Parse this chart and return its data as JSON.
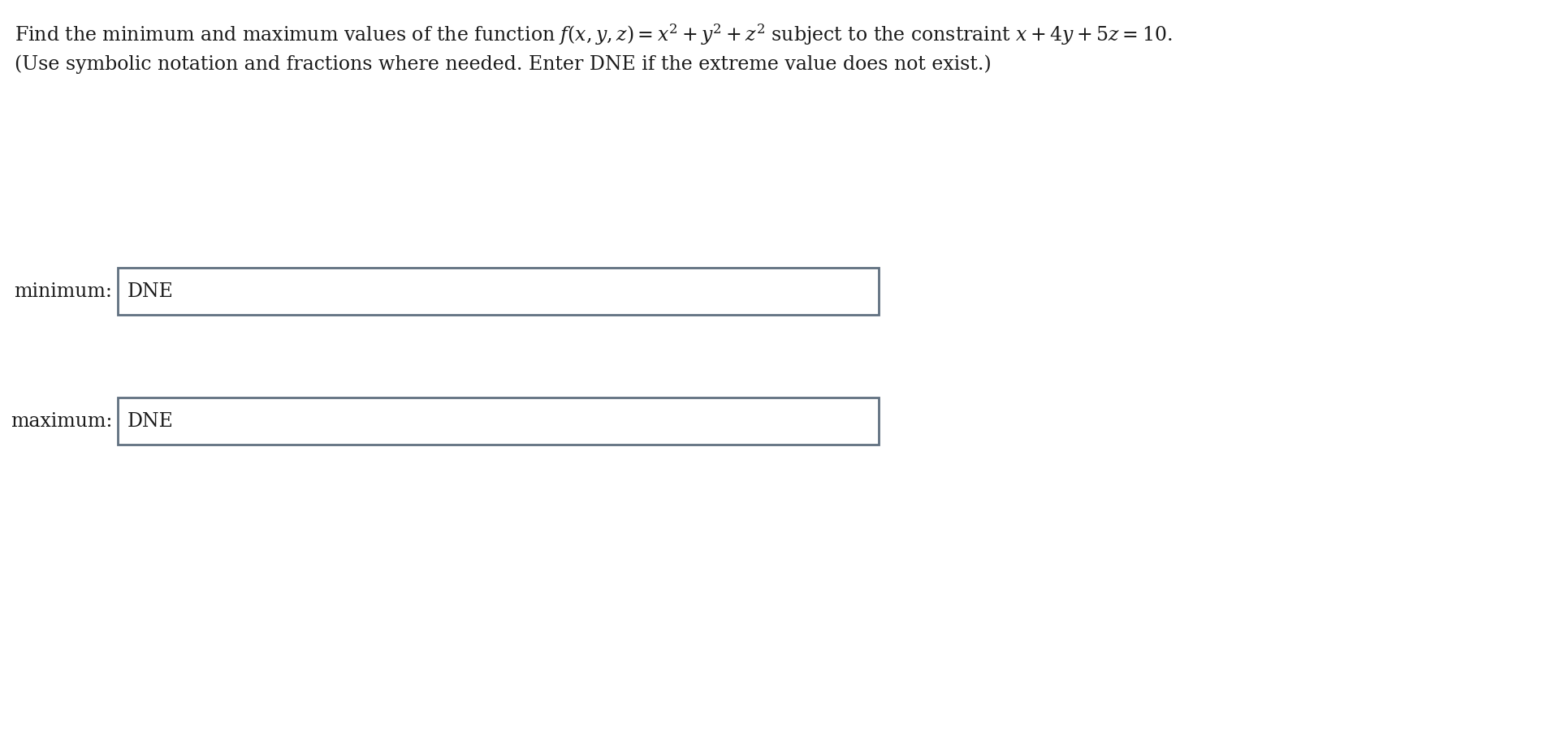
{
  "title_line1_plain": "Find the minimum and maximum values of the function ",
  "title_line1_math": "$f(x,y,z) = x^2 + y^2 + z^2$",
  "title_line1_rest": " subject to the constraint ",
  "title_line1_constraint": "$x + 4y + 5z = 10$.",
  "title_line2": "(Use symbolic notation and fractions where needed. Enter DNE if the extreme value does not exist.)",
  "minimum_label": "minimum:",
  "maximum_label": "maximum:",
  "minimum_value": "DNE",
  "maximum_value": "DNE",
  "background_color": "#ffffff",
  "text_color": "#1a1a1a",
  "box_edge_color": "#607080",
  "box_face_color": "#ffffff",
  "font_size_title": 17,
  "font_size_label": 17,
  "font_size_value": 17,
  "fig_width": 19.0,
  "fig_height": 9.22,
  "dpi": 100
}
